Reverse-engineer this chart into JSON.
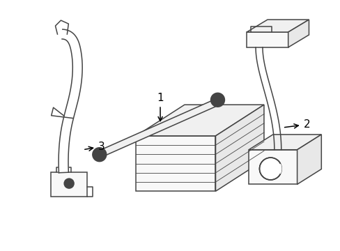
{
  "background_color": "#ffffff",
  "line_color": "#444444",
  "line_width": 1.1,
  "label_fontsize": 10,
  "fig_width": 4.89,
  "fig_height": 3.6,
  "dpi": 100
}
